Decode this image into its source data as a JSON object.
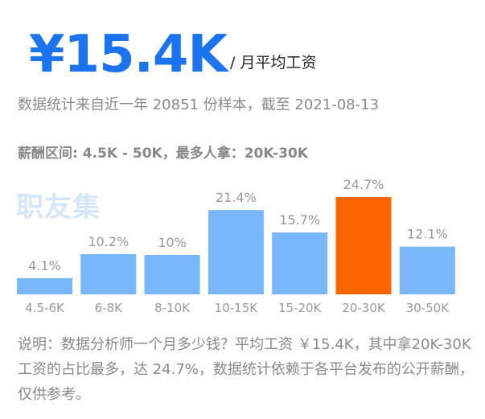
{
  "header": {
    "salary": "¥15.4K",
    "unit": "/ 月平均工资"
  },
  "source_note": "数据统计来自近一年 20851 份样本，截至 2021-08-13",
  "range_line": "薪酬区间: 4.5K - 50K，最多人拿：20K-30K",
  "watermark": "职友集",
  "colors": {
    "bar": "#78b7fc",
    "highlight": "#ff6600",
    "accent": "#1a73f0",
    "label": "#999999"
  },
  "chart_data": {
    "type": "bar",
    "categories": [
      "4.5-6K",
      "6-8K",
      "8-10K",
      "10-15K",
      "15-20K",
      "20-30K",
      "30-50K"
    ],
    "values": [
      4.1,
      10.2,
      10,
      21.4,
      15.7,
      24.7,
      12.1
    ],
    "value_labels": [
      "4.1%",
      "10.2%",
      "10%",
      "21.4%",
      "15.7%",
      "24.7%",
      "12.1%"
    ],
    "highlight_index": 5,
    "ylim": [
      0,
      24.7
    ],
    "grid": false
  },
  "explanation": "说明：数据分析师一个月多少钱？平均工资 ￥15.4K，其中拿20K-30K 工资的占比最多，达 24.7%，数据统计依赖于各平台发布的公开薪酬，仅供参考。"
}
